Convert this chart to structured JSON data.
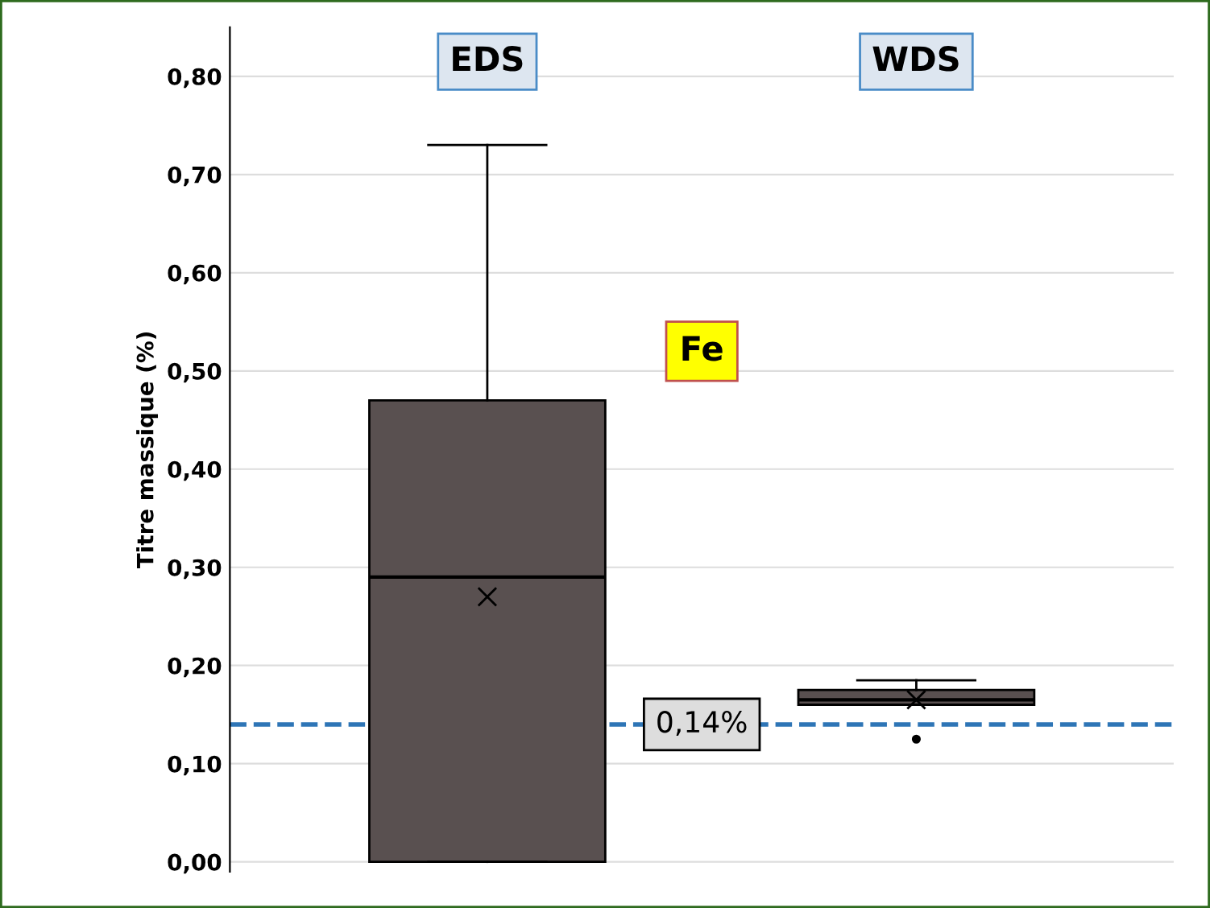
{
  "chart_data": {
    "type": "box",
    "ylabel": "Titre massique (%)",
    "categories": [
      "EDS",
      "WDS"
    ],
    "boxes": [
      {
        "low": 0.0,
        "q1": 0.0,
        "median": 0.29,
        "q3": 0.47,
        "high": 0.73,
        "mean": 0.27
      },
      {
        "low": 0.16,
        "q1": 0.16,
        "median": 0.165,
        "q3": 0.175,
        "high": 0.185,
        "mean": 0.165,
        "outliers": [
          0.125
        ]
      }
    ],
    "color": "#595050",
    "ylim": [
      -0.01,
      0.85
    ],
    "yticks": [
      {
        "value": 0,
        "label": "0,00"
      },
      {
        "value": 0.1,
        "label": "0,10"
      },
      {
        "value": 0.2,
        "label": "0,20"
      },
      {
        "value": 0.3,
        "label": "0,30"
      },
      {
        "value": 0.4,
        "label": "0,40"
      },
      {
        "value": 0.5,
        "label": "0,50"
      },
      {
        "value": 0.6,
        "label": "0,60"
      },
      {
        "value": 0.7,
        "label": "0,70"
      },
      {
        "value": 0.8,
        "label": "0,80"
      }
    ],
    "grid": "y",
    "ref_lines": [
      {
        "axis": "y",
        "value": 0.14,
        "label": "0,14%",
        "color": "#2e75b6",
        "line_style": "dashed"
      }
    ],
    "annotations": [
      {
        "text": "Fe"
      }
    ]
  }
}
